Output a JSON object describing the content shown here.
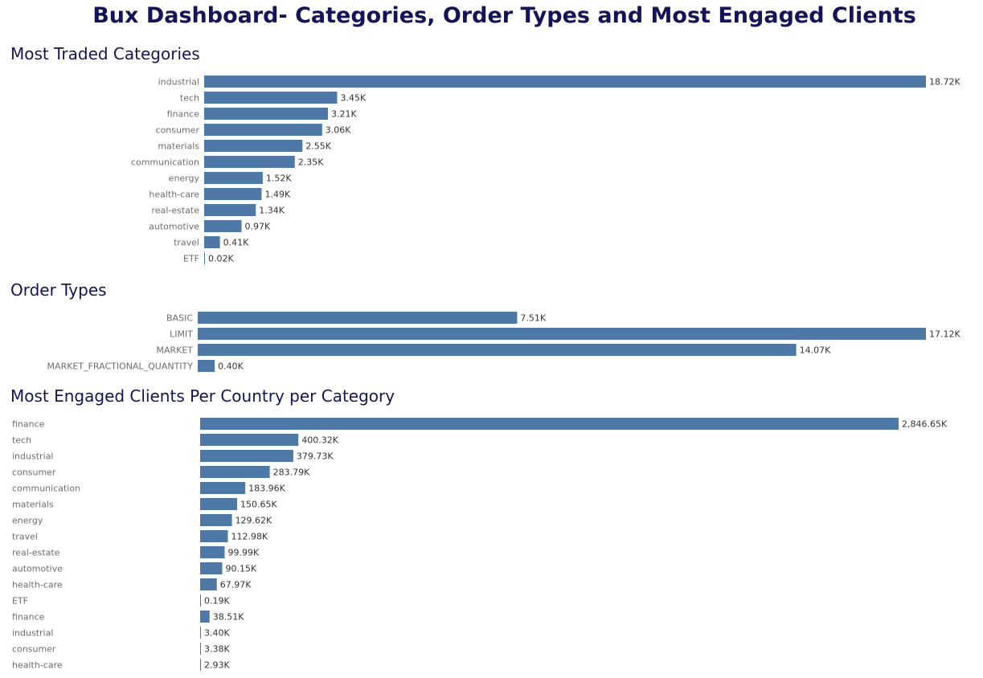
{
  "dashboard": {
    "title": "Bux Dashboard- Categories, Order Types and Most Engaged Clients"
  },
  "colors": {
    "bar": "#4e79a7",
    "title": "#14145a",
    "category_text": "#6e6e6e",
    "value_text": "#333333"
  },
  "chart_data": [
    {
      "type": "bar",
      "orientation": "horizontal",
      "title": "Most Traded Categories",
      "categories": [
        "industrial",
        "tech",
        "finance",
        "consumer",
        "materials",
        "communication",
        "energy",
        "health-care",
        "real-estate",
        "automotive",
        "travel",
        "ETF"
      ],
      "values": [
        18.72,
        3.45,
        3.21,
        3.06,
        2.55,
        2.35,
        1.52,
        1.49,
        1.34,
        0.97,
        0.41,
        0.02
      ],
      "value_labels": [
        "18.72K",
        "3.45K",
        "3.21K",
        "3.06K",
        "2.55K",
        "2.35K",
        "1.52K",
        "1.49K",
        "1.34K",
        "0.97K",
        "0.41K",
        "0.02K"
      ],
      "unit": "K",
      "label_align": "right",
      "xlim": [
        0,
        18.72
      ],
      "grid": false
    },
    {
      "type": "bar",
      "orientation": "horizontal",
      "title": "Order Types",
      "categories": [
        "BASIC",
        "LIMIT",
        "MARKET",
        "MARKET_FRACTIONAL_QUANTITY"
      ],
      "values": [
        7.51,
        17.12,
        14.07,
        0.4
      ],
      "value_labels": [
        "7.51K",
        "17.12K",
        "14.07K",
        "0.40K"
      ],
      "unit": "K",
      "label_align": "right",
      "xlim": [
        0,
        17.12
      ],
      "grid": false
    },
    {
      "type": "bar",
      "orientation": "horizontal",
      "title": "Most Engaged Clients Per Country per Category",
      "categories": [
        "finance",
        "tech",
        "industrial",
        "consumer",
        "communication",
        "materials",
        "energy",
        "travel",
        "real-estate",
        "automotive",
        "health-care",
        "ETF",
        "finance",
        "industrial",
        "consumer",
        "health-care"
      ],
      "values": [
        2846.65,
        400.32,
        379.73,
        283.79,
        183.96,
        150.65,
        129.62,
        112.98,
        99.99,
        90.15,
        67.97,
        0.19,
        38.51,
        3.4,
        3.38,
        2.93
      ],
      "value_labels": [
        "2,846.65K",
        "400.32K",
        "379.73K",
        "283.79K",
        "183.96K",
        "150.65K",
        "129.62K",
        "112.98K",
        "99.99K",
        "90.15K",
        "67.97K",
        "0.19K",
        "38.51K",
        "3.40K",
        "3.38K",
        "2.93K"
      ],
      "unit": "K",
      "label_align": "left",
      "xlim": [
        0,
        2846.65
      ],
      "grid": false
    }
  ]
}
